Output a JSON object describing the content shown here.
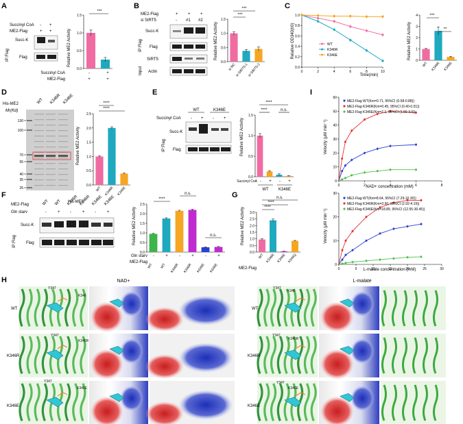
{
  "panels": {
    "A": {
      "label": "A",
      "treat_rows": [
        {
          "name": "Succinyl CoA",
          "marks": [
            "-",
            "+"
          ]
        },
        {
          "name": "ME2-Flag",
          "marks": [
            "+",
            "+"
          ]
        }
      ],
      "blot": {
        "side": "IP:Flag",
        "rows": [
          "Succ-K",
          "Flag"
        ]
      },
      "bar": {
        "ylabel": "Relative ME2 Activity",
        "yticks": [
          "0.0",
          "0.5",
          "1.0",
          "1.5"
        ],
        "sig": "***",
        "xrows": [
          {
            "name": "Succinyl CoA",
            "marks": [
              "-",
              "+"
            ]
          },
          {
            "name": "ME2-Flag",
            "marks": [
              "+",
              "+"
            ]
          }
        ]
      }
    },
    "B": {
      "label": "B",
      "treat_rows": [
        {
          "name": "ME2-Flag",
          "marks": [
            "+",
            "+",
            "+"
          ]
        },
        {
          "name": "si SIRT5",
          "marks": [
            "-",
            "#1",
            "#2"
          ]
        }
      ],
      "blot": {
        "side_top": "IP:Flag",
        "side_bottom": "Input",
        "rows": [
          "Succ-K",
          "Flag",
          "SIRT5",
          "Actin"
        ]
      },
      "bar": {
        "ylabel": "Relative ME2 Activity",
        "yticks": [
          "0.0",
          "0.5",
          "1.0",
          "1.5"
        ],
        "categories": [
          "si NC",
          "si SIRT5-1",
          "si SIRT5-2"
        ],
        "sig": [
          "***",
          "***"
        ]
      }
    },
    "C": {
      "label": "C",
      "line": {
        "ylabel": "Relative OD340(t/0)",
        "xlabel": "Time(min)",
        "yticks": [
          "0.0",
          "0.2",
          "0.4",
          "0.6",
          "0.8",
          "1.0"
        ],
        "xticks": [
          "0",
          "2",
          "4",
          "6",
          "8",
          "10"
        ],
        "legend": [
          "WT",
          "K346R",
          "K346E"
        ]
      },
      "bar": {
        "ylabel": "Relative ME2 Activity",
        "yticks": [
          "0",
          "1",
          "2",
          "3",
          "4"
        ],
        "categories": [
          "WT",
          "K346R",
          "K346E"
        ],
        "sig": [
          "***",
          "**"
        ]
      }
    },
    "D": {
      "label": "D",
      "gel": {
        "header": "His-ME2",
        "mw_unit": "Mr(Kd)",
        "mw": [
          "130",
          "100",
          "70",
          "55",
          "40",
          "35",
          "25"
        ],
        "lanes": [
          "WT",
          "K346R",
          "K346E"
        ]
      },
      "bar": {
        "ylabel": "Relative ME2 Activity",
        "yticks": [
          "0.0",
          "0.5",
          "1.0",
          "1.5",
          "2.0",
          "2.5"
        ],
        "categories": [
          "WT",
          "K346R",
          "K346E"
        ],
        "sig": [
          "****",
          "****"
        ],
        "xtitle": "His-ME2"
      }
    },
    "E": {
      "label": "E",
      "groups": [
        "WT",
        "K346E"
      ],
      "treat_rows": [
        {
          "name": "Succinyl CoA",
          "marks": [
            "-",
            "+",
            "-",
            "+"
          ]
        }
      ],
      "blot": {
        "side": "IP:Flag",
        "rows": [
          "Succ-K",
          "Flag"
        ]
      },
      "bar": {
        "ylabel": "Relative ME2 Activity",
        "yticks": [
          "0.0",
          "0.5",
          "1.0",
          "1.5"
        ],
        "sig": [
          "****",
          "****",
          "n.s."
        ],
        "xrow": {
          "name": "Succinyl CoA",
          "marks": [
            "-",
            "+",
            "-",
            "+"
          ]
        },
        "groups": [
          "WT",
          "K346E"
        ]
      }
    },
    "F": {
      "label": "F",
      "treat_rows": [
        {
          "name": "ME2-Flag",
          "marks": [
            "WT",
            "WT",
            "K346R",
            "K346R",
            "K346E",
            "K346E"
          ]
        },
        {
          "name": "Gln starv",
          "marks": [
            "-",
            "+",
            "-",
            "+",
            "-",
            "+"
          ]
        }
      ],
      "blot": {
        "side": "IP:Flag",
        "rows": [
          "Succ-K",
          "Flag"
        ]
      },
      "bar": {
        "ylabel": "Relative ME2 Activity",
        "yticks": [
          "0.0",
          "0.5",
          "1.0",
          "1.5",
          "2.0",
          "2.5"
        ],
        "sig": [
          "****",
          "n.s.",
          "n.s."
        ],
        "xrows": [
          {
            "name": "Gln starv",
            "marks": [
              "-",
              "+",
              "-",
              "+",
              "-",
              "+"
            ]
          },
          {
            "name": "ME2-Flag",
            "marks": [
              "WT",
              "WT",
              "K346R",
              "K346R",
              "K346E",
              "K346E"
            ]
          }
        ]
      }
    },
    "G": {
      "label": "G",
      "bar": {
        "ylabel": "Relative ME2 Activity",
        "yticks": [
          "0.0",
          "0.5",
          "1.0",
          "1.5",
          "2.0",
          "2.5",
          "3.0"
        ],
        "categories": [
          "WT",
          "K346R",
          "K346E",
          "K346Q"
        ],
        "sig": [
          "n.s.",
          "****",
          "****"
        ],
        "xtitle": "ME2-Flag"
      }
    },
    "I": {
      "label": "I",
      "top": {
        "ylabel": "Velocity (μM min⁻¹)",
        "xlabel": "NAD+ concentration (mM)",
        "yticks": [
          "0",
          "10",
          "20",
          "30",
          "40",
          "50",
          "60"
        ],
        "xticks": [
          "0",
          "2",
          "4",
          "6",
          "8"
        ],
        "legend": [
          "ME2-Flag WT(Km=0.71, 95%CI (0.58-0.88))",
          "ME2-Flag K346R(Km=0.45, 95%CI (0.40-0.51))",
          "ME2-Flag K346E(Km=2.1, 95%CI (1.56-3.0))"
        ]
      },
      "bottom": {
        "ylabel": "Velocity (μM min⁻¹)",
        "xlabel": "L-malate concentration (mM)",
        "yticks": [
          "0",
          "10",
          "20",
          "30"
        ],
        "xticks": [
          "0",
          "5",
          "10",
          "15",
          "20",
          "25",
          "30"
        ],
        "legend": [
          "ME2-Flag WT(Km=8.64, 95%CI (7.29-10.30))",
          "ME2-Flag K346R(Km=3.60, 95%CI (2.92-4.19))",
          "ME2-Flag K346E(Km=18.89, 95%CI (12.55-30.45))"
        ]
      }
    },
    "H": {
      "label": "H",
      "left_title": "NAD+",
      "right_title": "L-malate",
      "rows": [
        "WT",
        "K346R",
        "K346E"
      ],
      "residue_y": "Y347",
      "residue_k": [
        "K346",
        "K346R",
        "K346E"
      ]
    }
  },
  "colors": {
    "pink": "#f06ba2",
    "teal": "#1fa9bf",
    "orange": "#f5a623",
    "green": "#3cb54a",
    "magenta": "#c02bd0",
    "navy": "#2b3fd1",
    "red": "#e53030",
    "lime": "#4cc04c"
  },
  "chart_data": [
    {
      "type": "bar",
      "id": "A",
      "categories": [
        "-",
        "+"
      ],
      "values": [
        1.0,
        0.25
      ],
      "errors": [
        0.08,
        0.06
      ],
      "ylim": [
        0,
        1.5
      ]
    },
    {
      "type": "bar",
      "id": "B",
      "categories": [
        "si NC",
        "si SIRT5-1",
        "si SIRT5-2"
      ],
      "values": [
        1.0,
        0.38,
        0.45
      ],
      "errors": [
        0.06,
        0.05,
        0.07
      ],
      "ylim": [
        0,
        1.5
      ]
    },
    {
      "type": "line",
      "id": "C",
      "x": [
        0,
        2,
        4,
        6,
        8,
        10
      ],
      "series": [
        {
          "name": "WT",
          "values": [
            1.0,
            0.94,
            0.88,
            0.78,
            0.7,
            0.62
          ]
        },
        {
          "name": "K346R",
          "values": [
            1.0,
            0.88,
            0.72,
            0.52,
            0.32,
            0.12
          ]
        },
        {
          "name": "K346E",
          "values": [
            1.0,
            0.99,
            0.98,
            0.98,
            0.97,
            0.97
          ]
        }
      ],
      "ylim": [
        0,
        1.0
      ],
      "xlim": [
        0,
        10
      ]
    },
    {
      "type": "bar",
      "id": "C-bar",
      "categories": [
        "WT",
        "K346R",
        "K346E"
      ],
      "values": [
        1.0,
        2.6,
        0.3
      ],
      "errors": [
        0.05,
        0.35,
        0.05
      ],
      "ylim": [
        0,
        4
      ]
    },
    {
      "type": "bar",
      "id": "D",
      "categories": [
        "WT",
        "K346R",
        "K346E"
      ],
      "values": [
        1.0,
        2.0,
        0.4
      ],
      "errors": [
        0.03,
        0.04,
        0.02
      ],
      "ylim": [
        0,
        2.5
      ]
    },
    {
      "type": "bar",
      "id": "E",
      "categories": [
        "WT -",
        "WT +",
        "K346E -",
        "K346E +"
      ],
      "values": [
        1.0,
        0.13,
        0.05,
        0.02
      ],
      "errors": [
        0.05,
        0.02,
        0.02,
        0.01
      ],
      "ylim": [
        0,
        1.5
      ]
    },
    {
      "type": "bar",
      "id": "F",
      "categories": [
        "WT -",
        "WT +",
        "K346R -",
        "K346R +",
        "K346E -",
        "K346E +"
      ],
      "values": [
        0.95,
        1.75,
        2.15,
        2.2,
        0.25,
        0.27
      ],
      "errors": [
        0.03,
        0.04,
        0.03,
        0.04,
        0.02,
        0.02
      ],
      "ylim": [
        0,
        2.5
      ]
    },
    {
      "type": "bar",
      "id": "G",
      "categories": [
        "WT",
        "K346R",
        "K346E",
        "K346Q"
      ],
      "values": [
        0.95,
        2.4,
        0.05,
        0.85
      ],
      "errors": [
        0.06,
        0.1,
        0.02,
        0.03
      ],
      "ylim": [
        0,
        3.0
      ]
    },
    {
      "type": "line",
      "id": "I-top",
      "x": [
        0,
        0.25,
        0.5,
        1,
        2,
        3,
        4,
        6
      ],
      "series": [
        {
          "name": "ME2-Flag WT",
          "values": [
            0,
            7,
            11,
            15,
            20,
            23,
            25,
            26
          ]
        },
        {
          "name": "ME2-Flag K346R",
          "values": [
            0,
            16,
            28,
            36,
            44,
            48,
            50,
            49
          ]
        },
        {
          "name": "ME2-Flag K346E",
          "values": [
            0,
            1,
            2,
            4,
            6,
            7,
            8,
            8
          ]
        }
      ],
      "xlim": [
        0,
        8
      ],
      "ylim": [
        0,
        60
      ]
    },
    {
      "type": "line",
      "id": "I-bottom",
      "x": [
        0,
        1,
        2,
        4,
        8,
        12,
        16,
        20,
        24
      ],
      "series": [
        {
          "name": "ME2-Flag WT",
          "values": [
            0,
            2,
            4,
            6,
            10,
            13,
            15,
            16,
            17
          ]
        },
        {
          "name": "ME2-Flag K346R",
          "values": [
            0,
            6,
            10,
            14,
            20,
            24,
            26,
            27,
            27
          ]
        },
        {
          "name": "ME2-Flag K346E",
          "values": [
            0,
            0.3,
            0.6,
            1,
            1.5,
            2,
            2.5,
            3,
            3.2
          ]
        }
      ],
      "xlim": [
        0,
        30
      ],
      "ylim": [
        0,
        30
      ]
    }
  ]
}
